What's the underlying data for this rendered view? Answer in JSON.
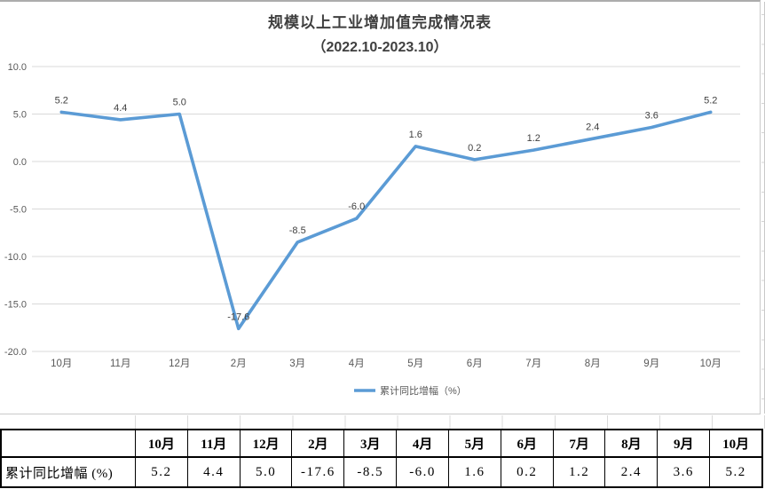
{
  "chart": {
    "title": "规模以上工业增加值完成情况表",
    "subtitle": "（2022.10-2023.10）",
    "legend_label": "累计同比增幅（%）",
    "colors": {
      "line": "#5B9BD5",
      "gridline": "#D9D9D9",
      "axis_label": "#595959",
      "data_label": "#404040",
      "title": "#3f3f3f"
    }
  },
  "chart_data": {
    "type": "line",
    "title": "规模以上工业增加值完成情况表（2022.10-2023.10）",
    "categories": [
      "10月",
      "11月",
      "12月",
      "2月",
      "3月",
      "4月",
      "5月",
      "6月",
      "7月",
      "8月",
      "9月",
      "10月"
    ],
    "series": [
      {
        "name": "累计同比增幅（%）",
        "values": [
          5.2,
          4.4,
          5.0,
          -17.6,
          -8.5,
          -6.0,
          1.6,
          0.2,
          1.2,
          2.4,
          3.6,
          5.2
        ]
      }
    ],
    "data_labels": [
      "5.2",
      "4.4",
      "5.0",
      "-17.6",
      "-8.5",
      "-6.0",
      "1.6",
      "0.2",
      "1.2",
      "2.4",
      "3.6",
      "5.2"
    ],
    "xlabel": "",
    "ylabel": "",
    "ylim": [
      -20,
      10
    ],
    "yticks": [
      10,
      5,
      0,
      -5,
      -10,
      -15,
      -20
    ],
    "ytick_labels": [
      "10.0",
      "5.0",
      "0.0",
      "-5.0",
      "-10.0",
      "-15.0",
      "-20.0"
    ],
    "grid": true,
    "legend_position": "bottom"
  },
  "table": {
    "corner_label": "",
    "columns": [
      "10月",
      "11月",
      "12月",
      "2月",
      "3月",
      "4月",
      "5月",
      "6月",
      "7月",
      "8月",
      "9月",
      "10月"
    ],
    "row_label": "累计同比增幅 (%)",
    "values": [
      "5.2",
      "4.4",
      "5.0",
      "-17.6",
      "-8.5",
      "-6.0",
      "1.6",
      "0.2",
      "1.2",
      "2.4",
      "3.6",
      "5.2"
    ]
  }
}
